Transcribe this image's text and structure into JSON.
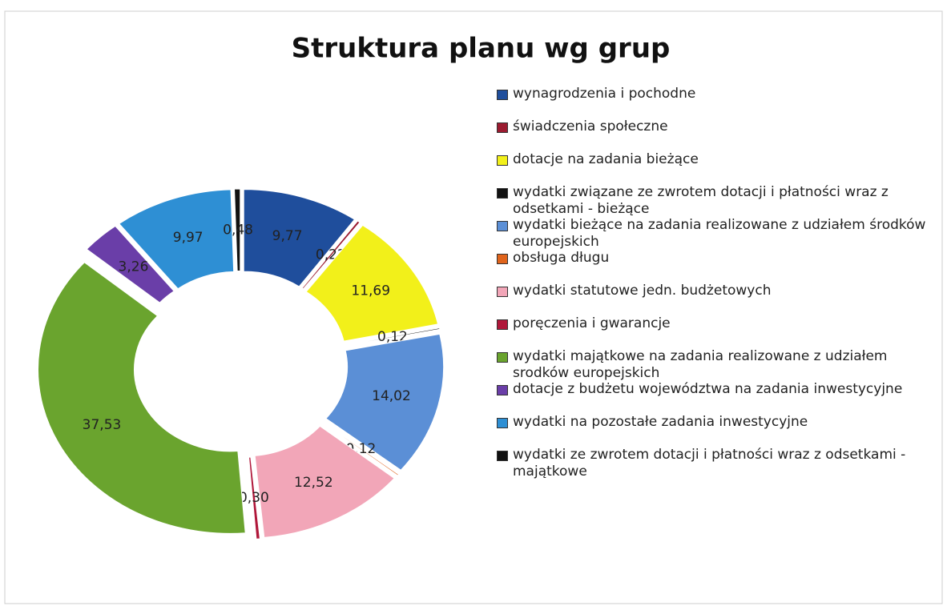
{
  "chart_data": {
    "type": "donut",
    "title": "Struktura planu wg grup",
    "categories": [
      "wynagrodzenia i pochodne",
      "świadczenia społeczne",
      "dotacje na zadania bieżące",
      "wydatki związane ze zwrotem dotacji i płatności wraz z odsetkami - bieżące",
      "wydatki bieżące na zadania realizowane z udziałem środków europejskich",
      "obsługa długu",
      "wydatki statutowe jedn. budżetowych",
      "poręczenia i gwarancje",
      "wydatki majątkowe na zadania realizowane z udziałem srodków europejskich",
      "dotacje z budżetu województwa na zadania inwestycyjne",
      "wydatki na pozostałe zadania inwestycyjne",
      "wydatki ze zwrotem dotacji i płatności wraz z odsetkami - majątkowe"
    ],
    "values": [
      9.77,
      0.22,
      11.69,
      0.12,
      14.02,
      0.12,
      12.52,
      0.3,
      37.53,
      3.26,
      9.97,
      0.48
    ],
    "value_labels": [
      "9,77",
      "0,22",
      "11,69",
      "0,12",
      "14,02",
      "0,12",
      "12,52",
      "0,30",
      "37,53",
      "3,26",
      "9,97",
      "0,48"
    ],
    "colors": [
      "#1f4e9c",
      "#9b1b30",
      "#f2f01a",
      "#111111",
      "#5b8fd6",
      "#e0641c",
      "#f2a6b8",
      "#b0173a",
      "#6aa42e",
      "#6a3ea8",
      "#2e8fd4",
      "#111111"
    ],
    "legend": "right"
  }
}
